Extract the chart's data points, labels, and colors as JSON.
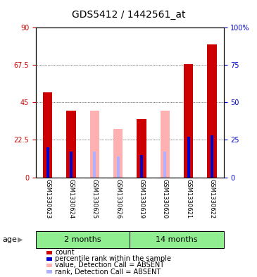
{
  "title": "GDS5412 / 1442561_at",
  "samples": [
    "GSM1330623",
    "GSM1330624",
    "GSM1330625",
    "GSM1330626",
    "GSM1330619",
    "GSM1330620",
    "GSM1330621",
    "GSM1330622"
  ],
  "group_labels": [
    "2 months",
    "14 months"
  ],
  "red_values": [
    51,
    40,
    0,
    0,
    35,
    0,
    68,
    80
  ],
  "pink_values": [
    0,
    0,
    40,
    29,
    0,
    40,
    0,
    0
  ],
  "blue_rank": [
    20,
    17,
    0,
    0,
    15,
    0,
    27,
    28
  ],
  "blue_rank_absent": [
    0,
    0,
    17,
    14,
    0,
    17,
    0,
    0
  ],
  "ylim_left": [
    0,
    90
  ],
  "ylim_right": [
    0,
    100
  ],
  "yticks_left": [
    0,
    22.5,
    45,
    67.5,
    90
  ],
  "yticks_right": [
    0,
    25,
    50,
    75,
    100
  ],
  "left_color": "#cc0000",
  "right_color": "#0000cc",
  "bar_width": 0.4,
  "red_color": "#cc0000",
  "pink_color": "#ffb0b0",
  "blue_color": "#0000cc",
  "blue_absent_color": "#b0b0ff",
  "background_plot": "#ffffff",
  "background_label": "#d0d0d0",
  "background_group": "#90ee90",
  "title_fontsize": 10,
  "tick_fontsize": 7,
  "label_fontsize": 8,
  "legend_fontsize": 7
}
